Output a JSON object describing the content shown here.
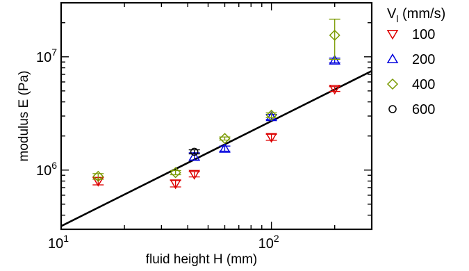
{
  "chart_data": {
    "type": "scatter",
    "x_scale": "log",
    "y_scale": "log",
    "xlim": [
      10,
      300
    ],
    "ylim": [
      300000,
      30000000
    ],
    "xlabel": "fluid height H (mm)",
    "ylabel": "modulus E (Pa)",
    "x_ticks": [
      {
        "value": 10,
        "base": "10",
        "exp": "1"
      },
      {
        "value": 100,
        "base": "10",
        "exp": "2"
      }
    ],
    "y_ticks": [
      {
        "value": 1000000,
        "base": "10",
        "exp": "6"
      },
      {
        "value": 10000000,
        "base": "10",
        "exp": "7"
      }
    ],
    "legend": {
      "title_main": "V",
      "title_sub": "l",
      "title_rest": " (mm/s)",
      "placement": "outside-right"
    },
    "series": [
      {
        "name": "100",
        "marker": "triangle-down",
        "color": "#dd0000",
        "points": [
          {
            "x": 15,
            "y": 800000,
            "err": 60000
          },
          {
            "x": 35,
            "y": 760000,
            "err": 50000
          },
          {
            "x": 43,
            "y": 920000,
            "err": 50000
          },
          {
            "x": 100,
            "y": 1950000,
            "err": 120000
          },
          {
            "x": 200,
            "y": 5200000,
            "err": 250000
          }
        ]
      },
      {
        "name": "200",
        "marker": "triangle-up",
        "color": "#0000dd",
        "points": [
          {
            "x": 43,
            "y": 1320000,
            "err": 100000
          },
          {
            "x": 60,
            "y": 1550000,
            "err": 80000
          },
          {
            "x": 100,
            "y": 2950000,
            "err": 150000
          },
          {
            "x": 200,
            "y": 9300000,
            "err": 450000
          }
        ]
      },
      {
        "name": "400",
        "marker": "diamond",
        "color": "#7a9a01",
        "points": [
          {
            "x": 15,
            "y": 880000,
            "err": 50000
          },
          {
            "x": 35,
            "y": 950000,
            "err": 40000
          },
          {
            "x": 60,
            "y": 1900000,
            "err": 60000
          },
          {
            "x": 100,
            "y": 3050000,
            "err": 150000
          },
          {
            "x": 200,
            "y": 15500000,
            "err": 6000000
          }
        ]
      },
      {
        "name": "600",
        "marker": "circle",
        "color": "#000000",
        "points": [
          {
            "x": 43,
            "y": 1450000,
            "err": 60000
          }
        ]
      }
    ],
    "fit_line": {
      "color": "#000000",
      "x": [
        10,
        300
      ],
      "y": [
        320000,
        7500000
      ]
    }
  }
}
